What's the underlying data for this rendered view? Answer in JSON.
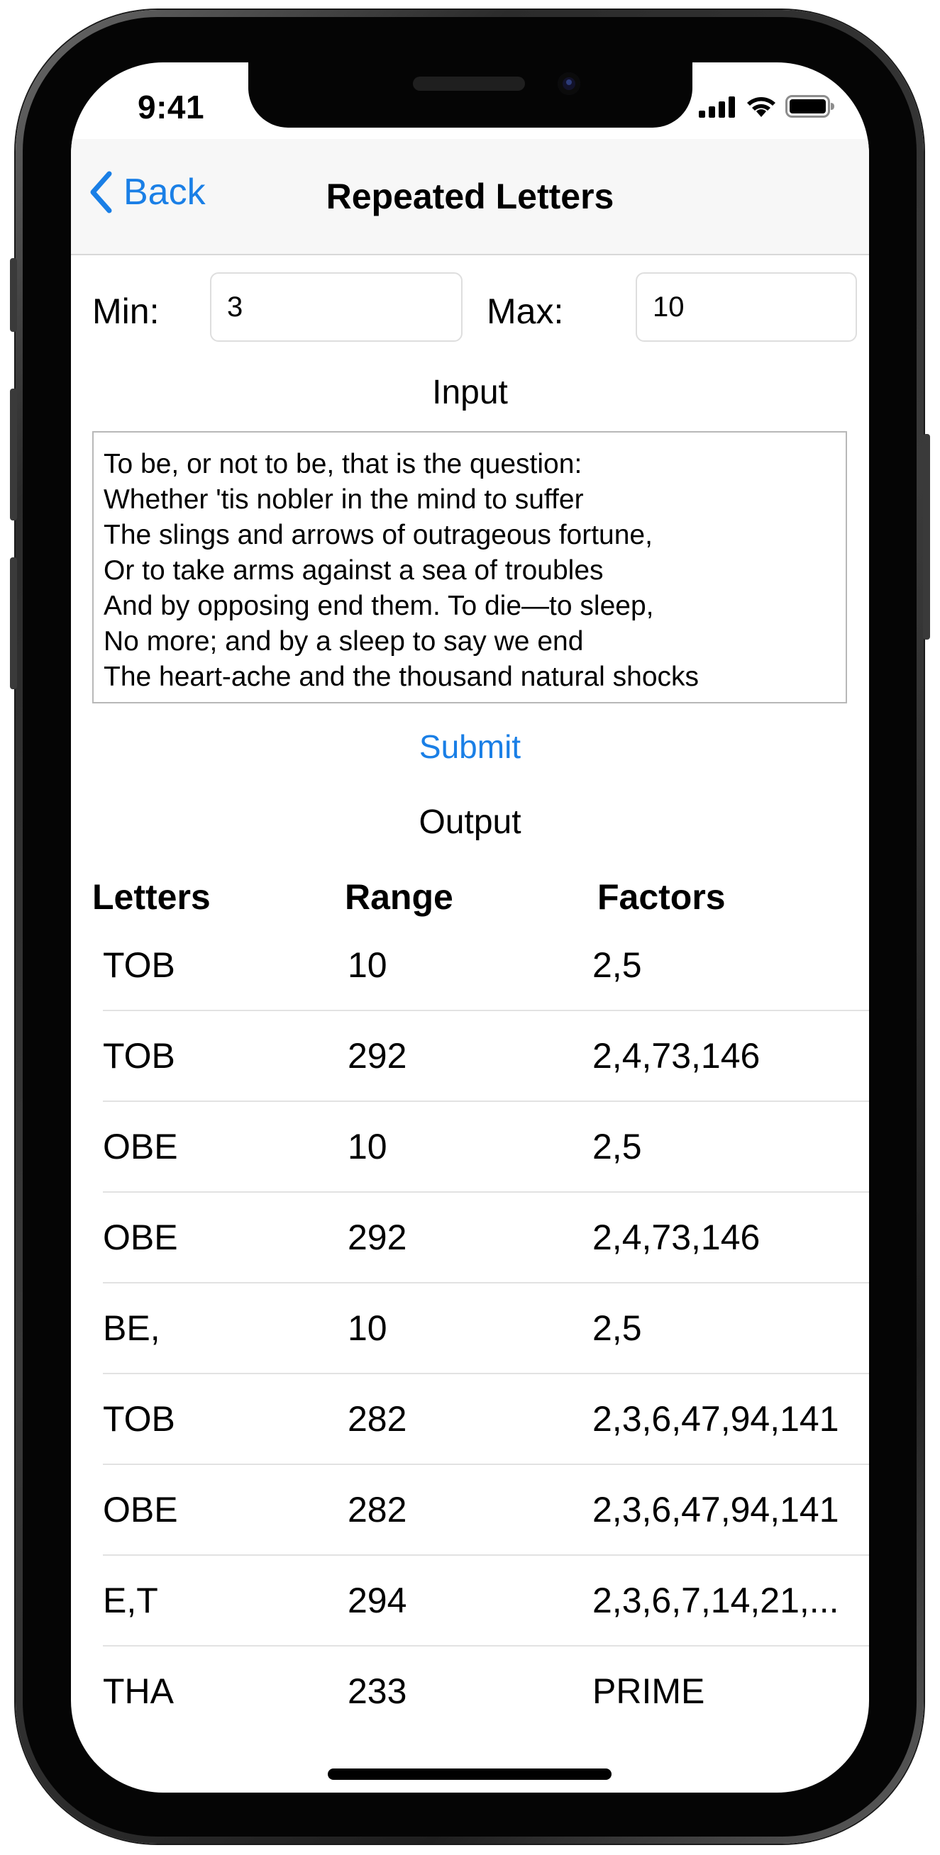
{
  "status_bar": {
    "time": "9:41"
  },
  "nav": {
    "back_label": "Back",
    "title": "Repeated Letters"
  },
  "form": {
    "min_label": "Min:",
    "min_value": "3",
    "max_label": "Max:",
    "max_value": "10",
    "input_title": "Input",
    "input_lines": [
      "To be, or not to be, that is the question:",
      "Whether 'tis nobler in the mind to suffer",
      "The slings and arrows of outrageous fortune,",
      "Or to take arms against a sea of troubles",
      "And by opposing end them. To die—to sleep,",
      "No more; and by a sleep to say we end",
      "The heart-ache and the thousand natural shocks"
    ],
    "submit_label": "Submit"
  },
  "output": {
    "title": "Output",
    "columns": [
      "Letters",
      "Range",
      "Factors"
    ],
    "rows": [
      {
        "letters": "TOB",
        "range": "10",
        "factors": "2,5"
      },
      {
        "letters": "TOB",
        "range": "292",
        "factors": "2,4,73,146"
      },
      {
        "letters": "OBE",
        "range": "10",
        "factors": "2,5"
      },
      {
        "letters": "OBE",
        "range": "292",
        "factors": "2,4,73,146"
      },
      {
        "letters": "BE,",
        "range": "10",
        "factors": "2,5"
      },
      {
        "letters": "TOB",
        "range": "282",
        "factors": "2,3,6,47,94,141"
      },
      {
        "letters": "OBE",
        "range": "282",
        "factors": "2,3,6,47,94,141"
      },
      {
        "letters": "E,T",
        "range": "294",
        "factors": "2,3,6,7,14,21,..."
      },
      {
        "letters": "THA",
        "range": "233",
        "factors": "PRIME"
      }
    ]
  },
  "icons": {
    "back": "chevron-left-icon",
    "signal": "cellular-signal-icon",
    "wifi": "wifi-icon",
    "battery": "battery-icon"
  },
  "colors": {
    "accent": "#1a7fe6",
    "nav_background": "#f7f7f7"
  }
}
